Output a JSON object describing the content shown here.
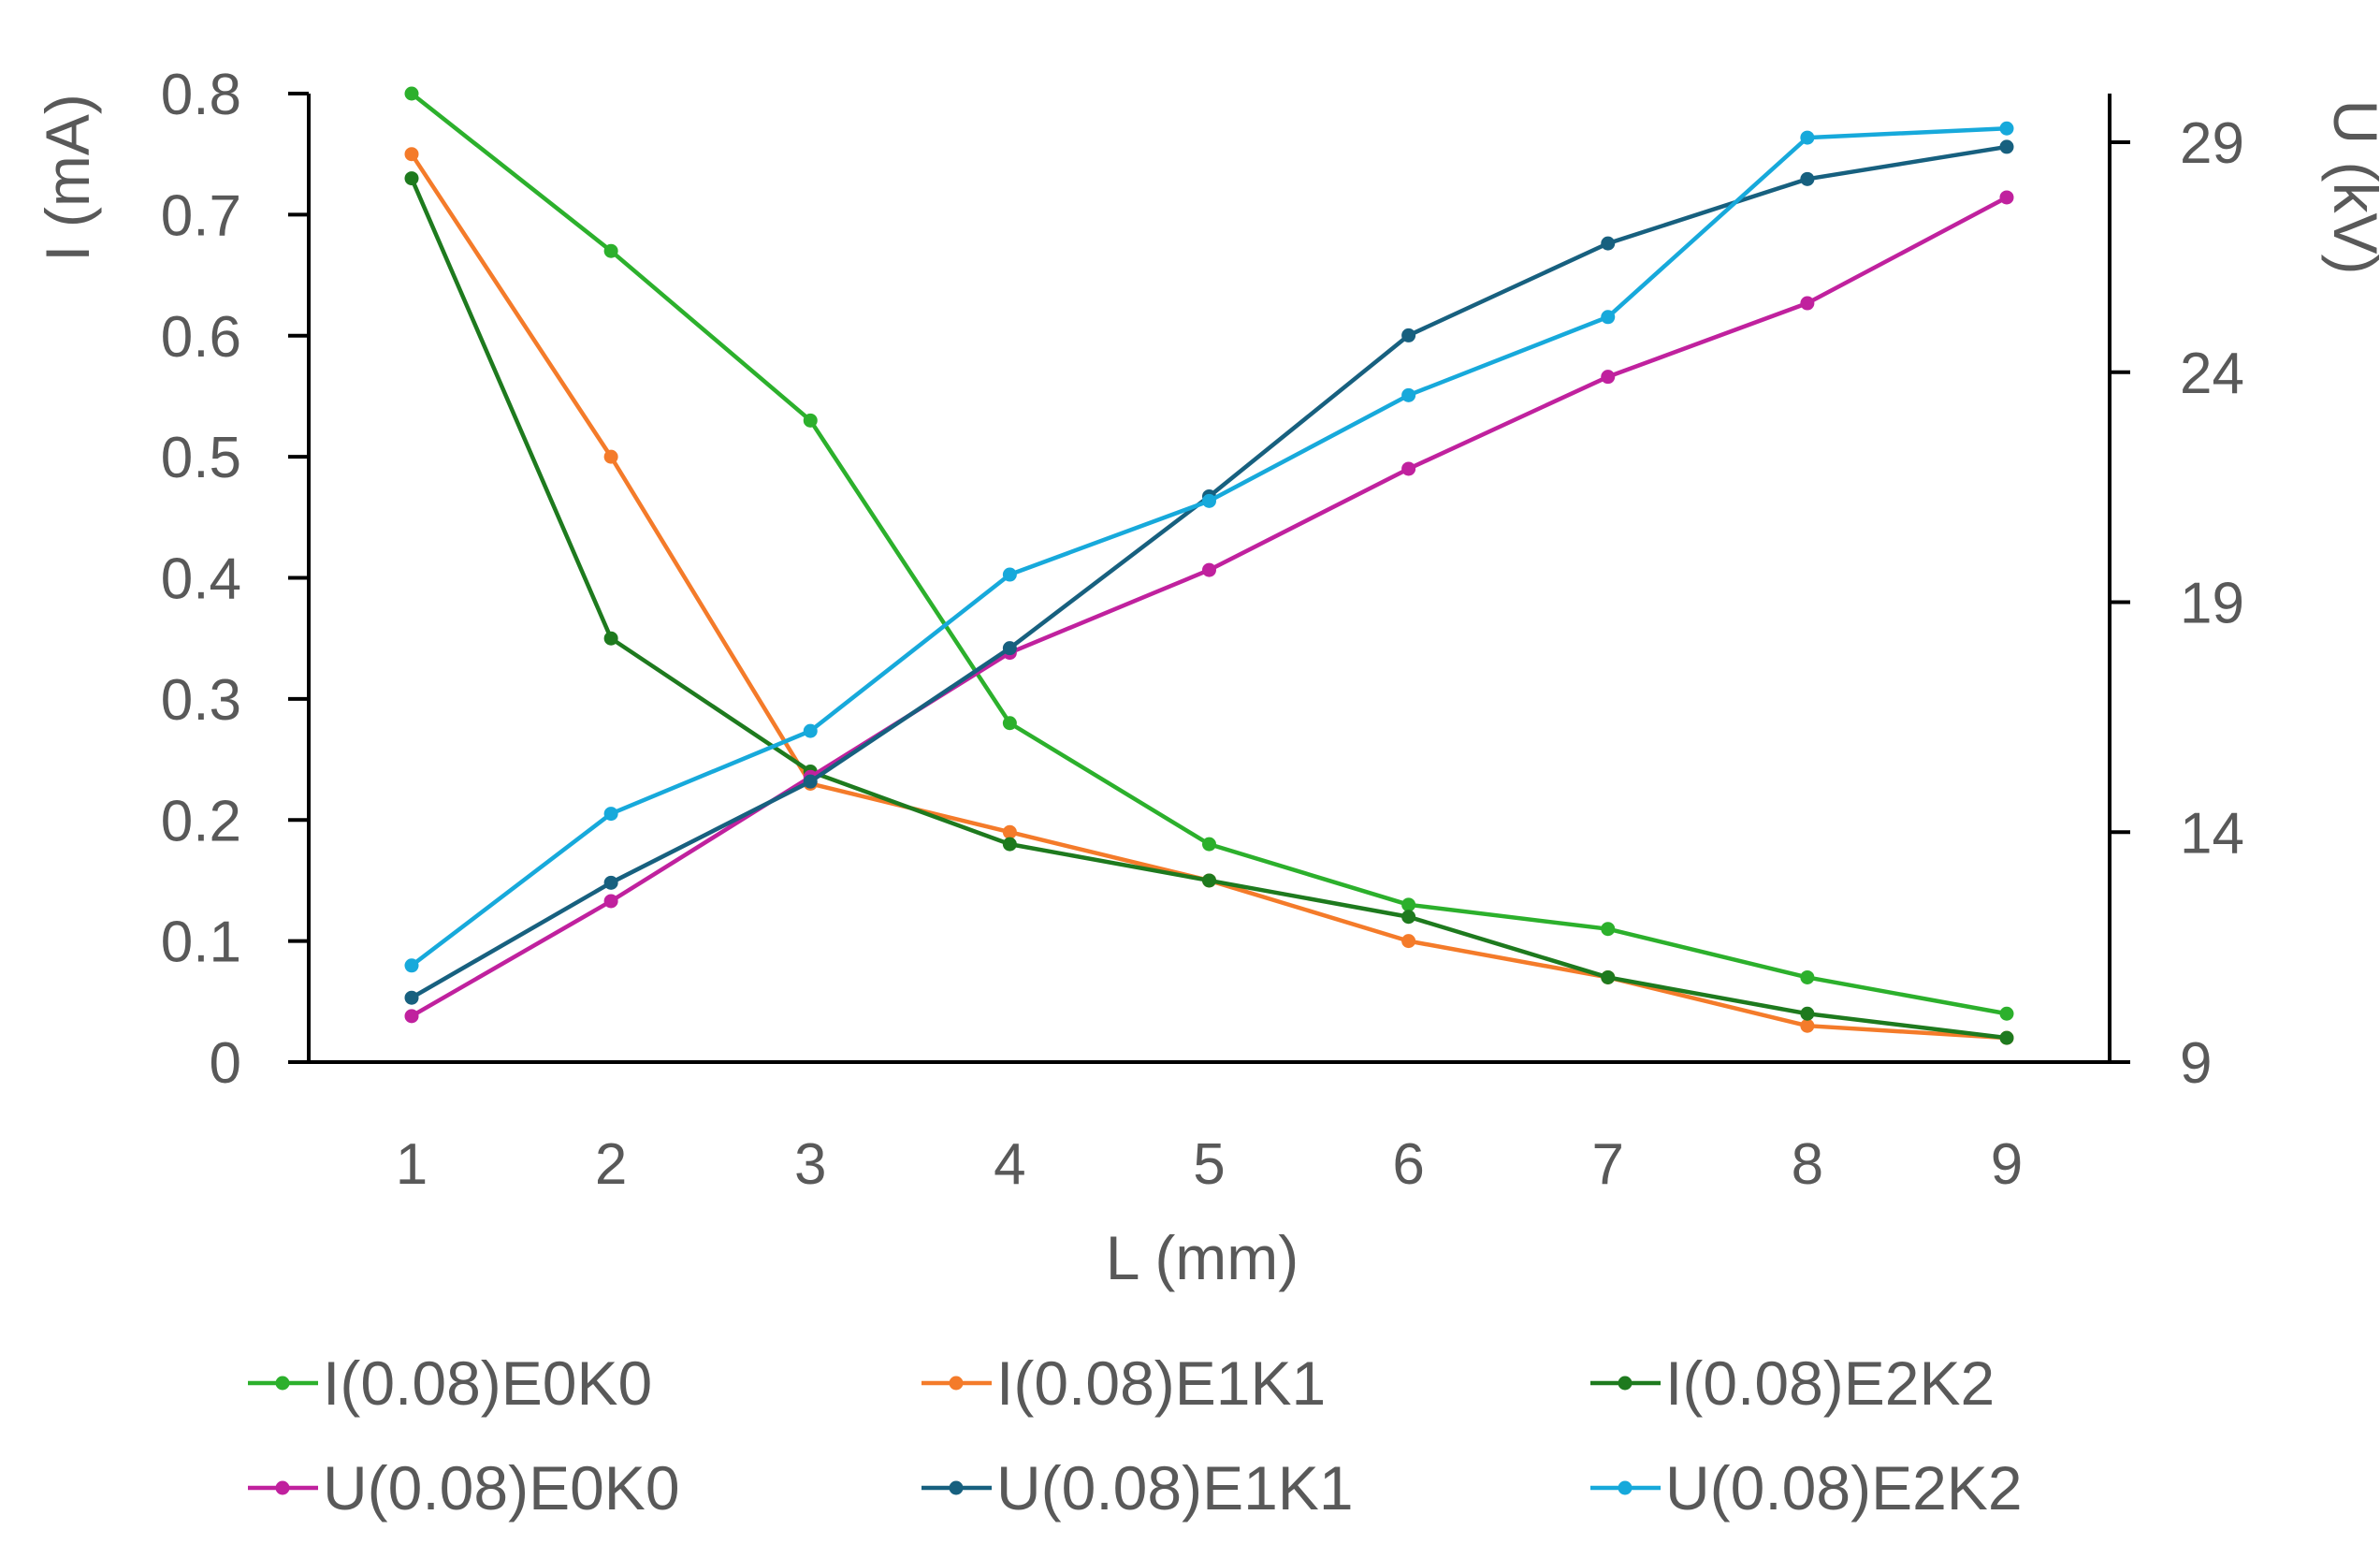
{
  "chart_data": {
    "type": "line",
    "title": "",
    "xlabel": "L (mm)",
    "ylabel_left": "I (mA)",
    "ylabel_right": "U (kV)",
    "categories": [
      1,
      2,
      3,
      4,
      5,
      6,
      7,
      8,
      9
    ],
    "category_labels": [
      "1",
      "2",
      "3",
      "4",
      "5",
      "6",
      "7",
      "8",
      "9"
    ],
    "ylim_left": [
      0,
      0.8
    ],
    "yticks_left": [
      "0",
      "0.1",
      "0.2",
      "0.3",
      "0.4",
      "0.5",
      "0.6",
      "0.7",
      "0.8"
    ],
    "ylim_right": [
      9,
      29
    ],
    "yticks_right": [
      "9",
      "14",
      "19",
      "24",
      "29"
    ],
    "grid": false,
    "legend_position": "bottom",
    "series": [
      {
        "name": "I(0.08)E0K0",
        "axis": "left",
        "color": "#2CB02C",
        "values": [
          0.8,
          0.67,
          0.53,
          0.28,
          0.18,
          0.13,
          0.11,
          0.07,
          0.04
        ]
      },
      {
        "name": "I(0.08)E1K1",
        "axis": "left",
        "color": "#F47B2A",
        "values": [
          0.75,
          0.5,
          0.23,
          0.19,
          0.15,
          0.1,
          0.07,
          0.03,
          0.02
        ]
      },
      {
        "name": "I(0.08)E2K2",
        "axis": "left",
        "color": "#1E7A1E",
        "values": [
          0.73,
          0.35,
          0.24,
          0.18,
          0.15,
          0.12,
          0.07,
          0.04,
          0.02
        ]
      },
      {
        "name": "U(0.08)E0K0",
        "axis": "right",
        "color": "#C0219E",
        "values": [
          10.0,
          12.5,
          15.2,
          17.9,
          19.7,
          21.9,
          23.9,
          25.5,
          27.8
        ]
      },
      {
        "name": "U(0.08)E1K1",
        "axis": "right",
        "color": "#17607F",
        "values": [
          10.4,
          12.9,
          15.1,
          18.0,
          21.3,
          24.8,
          26.8,
          28.2,
          28.9
        ]
      },
      {
        "name": "U(0.08)E2K2",
        "axis": "right",
        "color": "#17A9DB",
        "values": [
          11.1,
          14.4,
          16.2,
          19.6,
          21.2,
          23.5,
          25.2,
          29.1,
          29.3
        ]
      }
    ]
  }
}
